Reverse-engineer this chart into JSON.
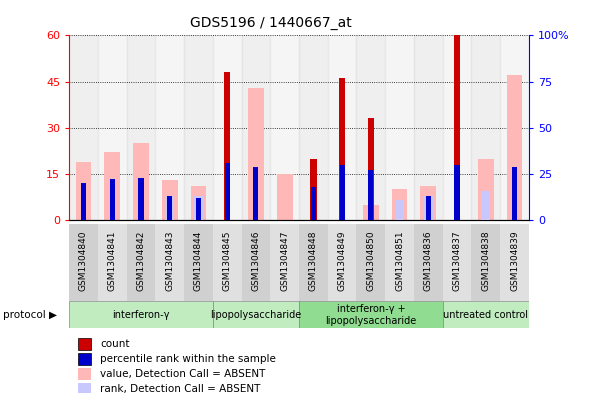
{
  "title": "GDS5196 / 1440667_at",
  "samples": [
    "GSM1304840",
    "GSM1304841",
    "GSM1304842",
    "GSM1304843",
    "GSM1304844",
    "GSM1304845",
    "GSM1304846",
    "GSM1304847",
    "GSM1304848",
    "GSM1304849",
    "GSM1304850",
    "GSM1304851",
    "GSM1304836",
    "GSM1304837",
    "GSM1304838",
    "GSM1304839"
  ],
  "count": [
    0,
    0,
    0,
    0,
    0,
    48,
    0,
    0,
    20,
    46,
    33,
    0,
    0,
    60,
    0,
    0
  ],
  "percentile_rank": [
    20,
    22,
    23,
    13,
    12,
    31,
    29,
    0,
    18,
    30,
    27,
    0,
    13,
    30,
    0,
    29
  ],
  "value_absent": [
    19,
    22,
    25,
    13,
    11,
    0,
    43,
    15,
    0,
    0,
    5,
    10,
    11,
    0,
    20,
    47
  ],
  "rank_absent": [
    0,
    0,
    0,
    13,
    13,
    0,
    0,
    0,
    0,
    0,
    0,
    11,
    13,
    0,
    16,
    0
  ],
  "groups": [
    {
      "label": "interferon-γ",
      "start": 0,
      "end": 5,
      "color": "#c0ecc0"
    },
    {
      "label": "lipopolysaccharide",
      "start": 5,
      "end": 8,
      "color": "#c0ecc0"
    },
    {
      "label": "interferon-γ +\nlipopolysaccharide",
      "start": 8,
      "end": 13,
      "color": "#90dc90"
    },
    {
      "label": "untreated control",
      "start": 13,
      "end": 16,
      "color": "#c0ecc0"
    }
  ],
  "ylim_left": [
    0,
    60
  ],
  "ylim_right": [
    0,
    100
  ],
  "yticks_left": [
    0,
    15,
    30,
    45,
    60
  ],
  "yticks_right": [
    0,
    25,
    50,
    75,
    100
  ],
  "color_count": "#cc0000",
  "color_rank": "#0000cc",
  "color_value_absent": "#ffb8b8",
  "color_rank_absent": "#c8c8ff",
  "legend_items": [
    {
      "label": "count",
      "color": "#cc0000",
      "border": true
    },
    {
      "label": "percentile rank within the sample",
      "color": "#0000cc",
      "border": true
    },
    {
      "label": "value, Detection Call = ABSENT",
      "color": "#ffb8b8",
      "border": false
    },
    {
      "label": "rank, Detection Call = ABSENT",
      "color": "#c8c8ff",
      "border": false
    }
  ]
}
